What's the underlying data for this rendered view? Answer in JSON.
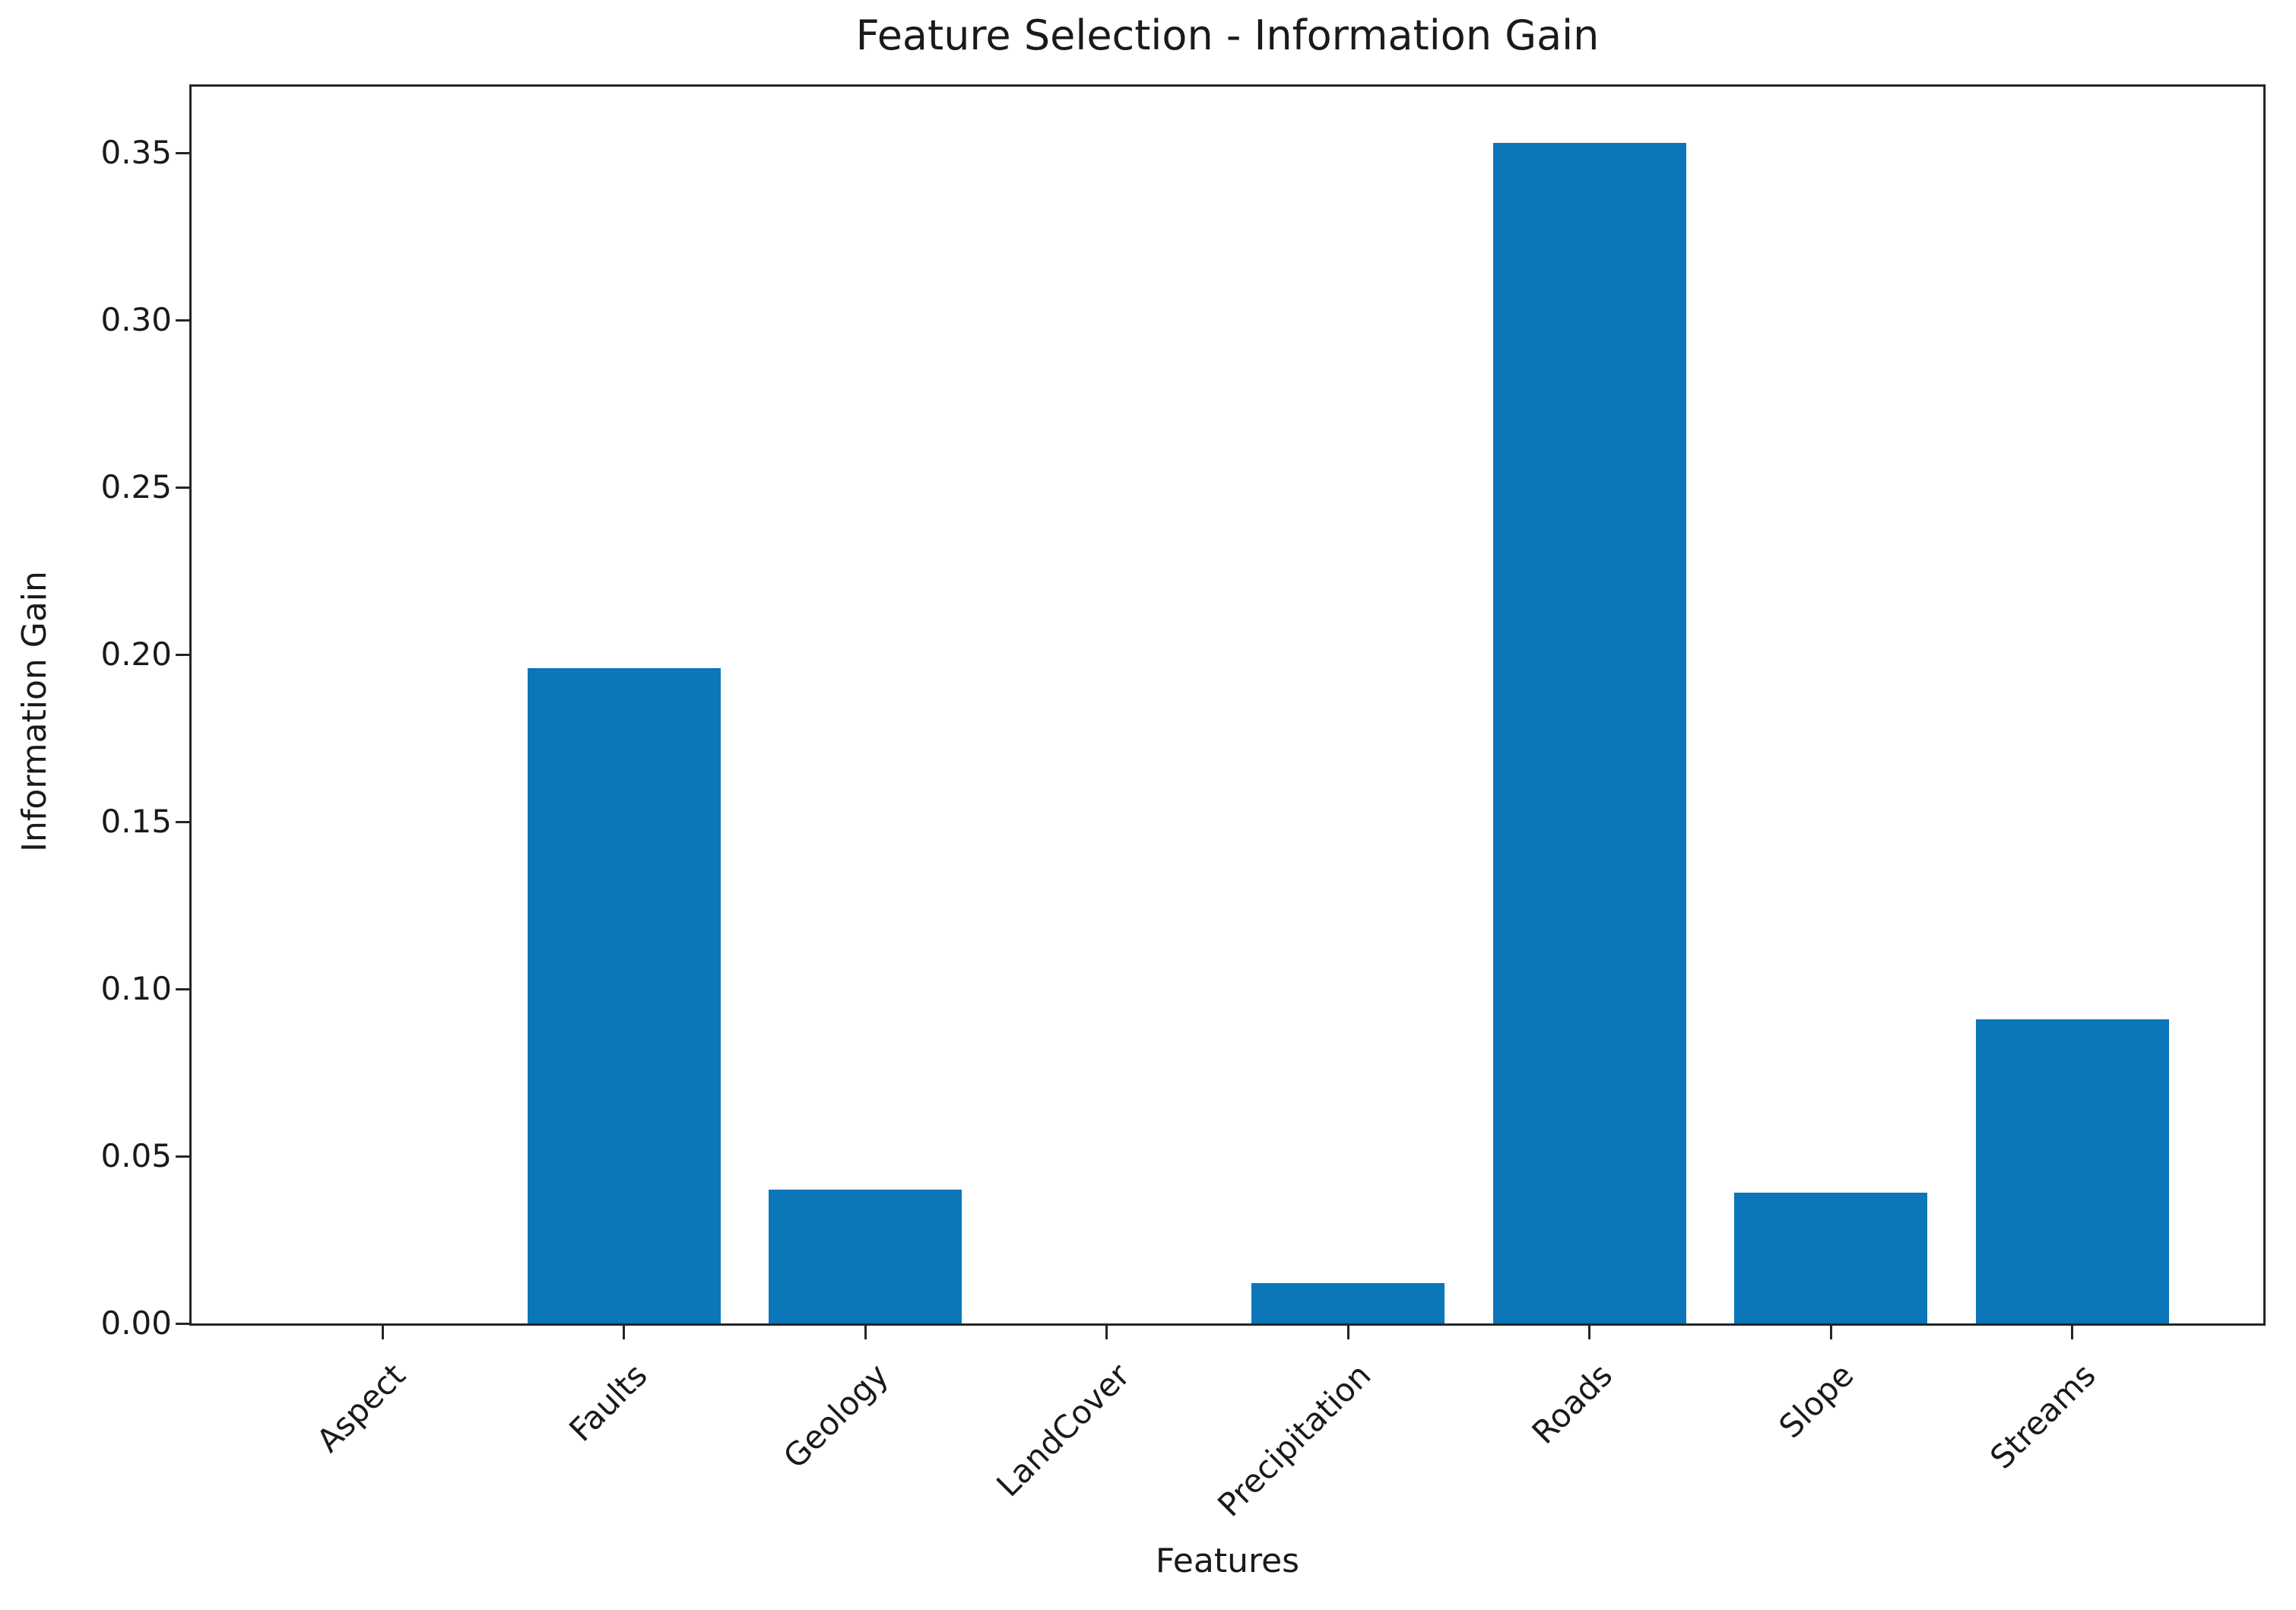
{
  "chart_data": {
    "type": "bar",
    "title": "Feature Selection - Information Gain",
    "xlabel": "Features",
    "ylabel": "Information Gain",
    "categories": [
      "Aspect",
      "Faults",
      "Geology",
      "LandCover",
      "Precipitation",
      "Roads",
      "Slope",
      "Streams"
    ],
    "values": [
      0.0,
      0.196,
      0.04,
      0.0,
      0.012,
      0.353,
      0.039,
      0.091
    ],
    "ytick_labels": [
      "0.00",
      "0.05",
      "0.10",
      "0.15",
      "0.20",
      "0.25",
      "0.30",
      "0.35"
    ],
    "ytick_values": [
      0.0,
      0.05,
      0.1,
      0.15,
      0.2,
      0.25,
      0.3,
      0.35
    ],
    "ylim": [
      0,
      0.37
    ],
    "x_tick_rotation": 45,
    "grid": false,
    "legend": null,
    "bar_color": "#0b76b8",
    "axis_color": "#262626",
    "text_color": "#1a1a1a",
    "background_color": "#ffffff"
  }
}
